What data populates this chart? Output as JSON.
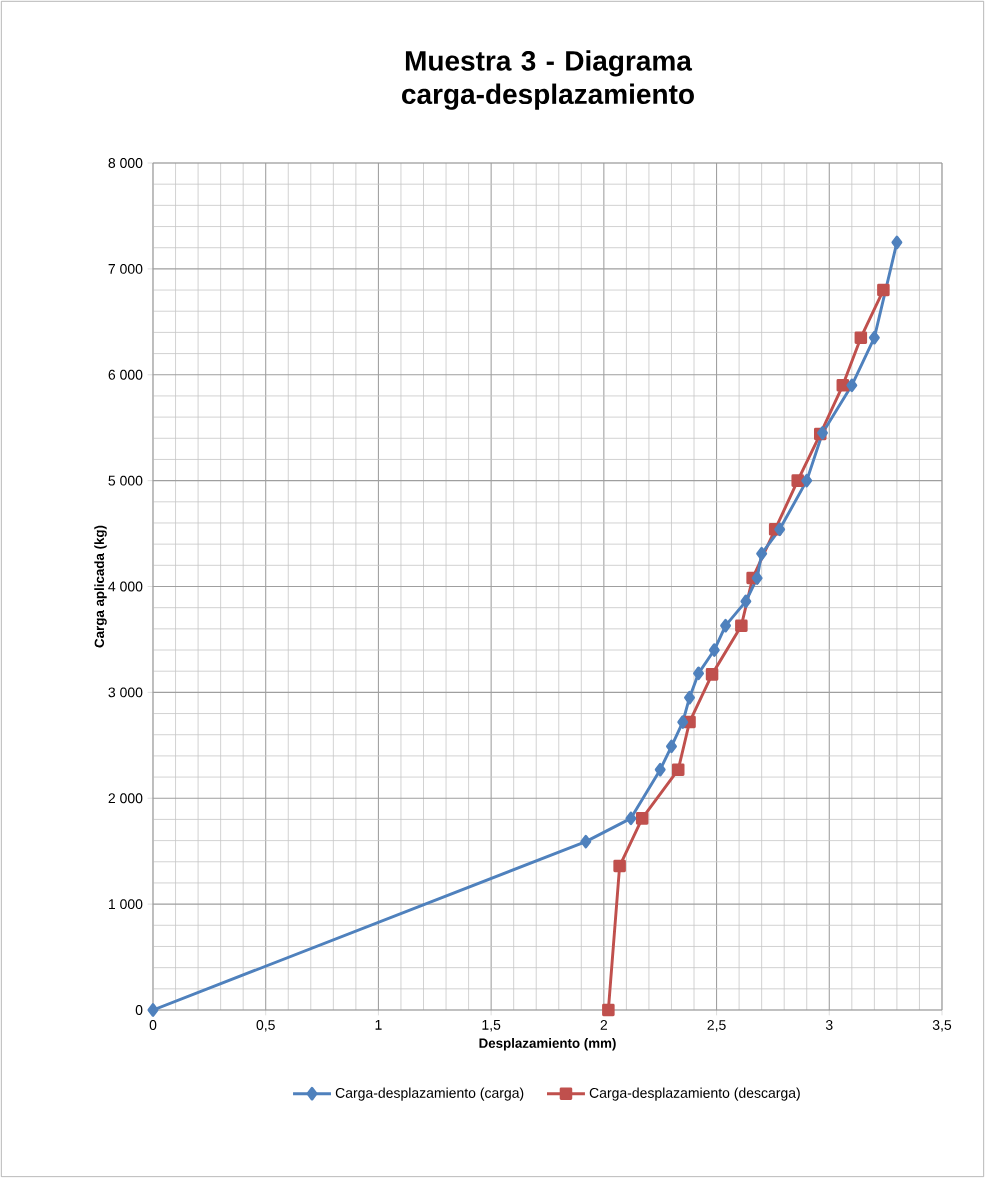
{
  "chart_data": {
    "type": "line",
    "title": "Muestra 3 - Diagrama carga-desplazamiento",
    "xlabel": "Desplazamiento (mm)",
    "ylabel": "Carga aplicada (kg)",
    "xlim": [
      0,
      3.5
    ],
    "ylim": [
      0,
      8000
    ],
    "xticks": [
      0,
      {
        "value": 0.5,
        "label": "0,5"
      },
      1,
      {
        "value": 1.5,
        "label": "1,5"
      },
      2,
      {
        "value": 2.5,
        "label": "2,5"
      },
      3,
      {
        "value": 3.5,
        "label": "3,5"
      }
    ],
    "yticks": [
      0,
      {
        "value": 1000,
        "label": "1 000"
      },
      {
        "value": 2000,
        "label": "2 000"
      },
      {
        "value": 3000,
        "label": "3 000"
      },
      {
        "value": 4000,
        "label": "4 000"
      },
      {
        "value": 5000,
        "label": "5 000"
      },
      {
        "value": 6000,
        "label": "6 000"
      },
      {
        "value": 7000,
        "label": "7 000"
      },
      {
        "value": 8000,
        "label": "8 000"
      }
    ],
    "grid": true,
    "legend": "bottom",
    "series": [
      {
        "name": "Carga-desplazamiento (carga)",
        "color": "#4f81bd",
        "marker": "diamond",
        "x": [
          0,
          1.92,
          2.12,
          2.25,
          2.3,
          2.35,
          2.38,
          2.42,
          2.49,
          2.54,
          2.63,
          2.68,
          2.7,
          2.78,
          2.9,
          2.97,
          3.1,
          3.2,
          3.3
        ],
        "values": [
          0,
          1590,
          1810,
          2270,
          2490,
          2720,
          2950,
          3180,
          3400,
          3630,
          3860,
          4080,
          4310,
          4540,
          5000,
          5450,
          5900,
          6350,
          7250
        ]
      },
      {
        "name": "Carga-desplazamiento (descarga)",
        "color": "#c0504d",
        "marker": "square",
        "x": [
          2.02,
          2.07,
          2.17,
          2.33,
          2.38,
          2.48,
          2.61,
          2.66,
          2.76,
          2.86,
          2.96,
          3.06,
          3.14,
          3.24
        ],
        "values": [
          0,
          1360,
          1810,
          2270,
          2720,
          3170,
          3630,
          4080,
          4540,
          5000,
          5440,
          5900,
          6350,
          6800
        ]
      }
    ]
  }
}
